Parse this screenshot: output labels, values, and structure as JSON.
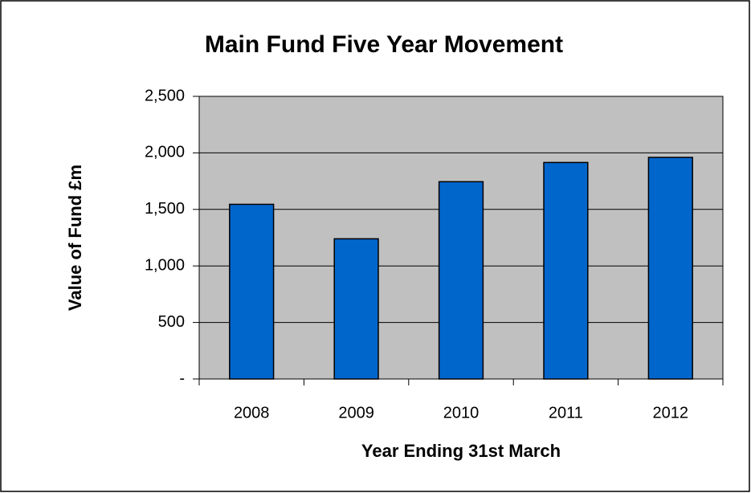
{
  "chart_data": {
    "type": "bar",
    "title": "Main Fund Five Year Movement",
    "x_label": "Year Ending 31st March",
    "y_label": "Value of Fund £m",
    "categories": [
      "2008",
      "2009",
      "2010",
      "2011",
      "2012"
    ],
    "values": [
      1545,
      1240,
      1745,
      1915,
      1960
    ],
    "color": "#0066cc",
    "ylim": [
      0,
      2500
    ],
    "yticks": [
      {
        "value": 0,
        "label": "-"
      },
      500,
      {
        "value": 1000,
        "label": "1,000"
      },
      {
        "value": 1500,
        "label": "1,500"
      },
      {
        "value": 2000,
        "label": "2,000"
      },
      {
        "value": 2500,
        "label": "2,500"
      }
    ],
    "grid": true
  }
}
